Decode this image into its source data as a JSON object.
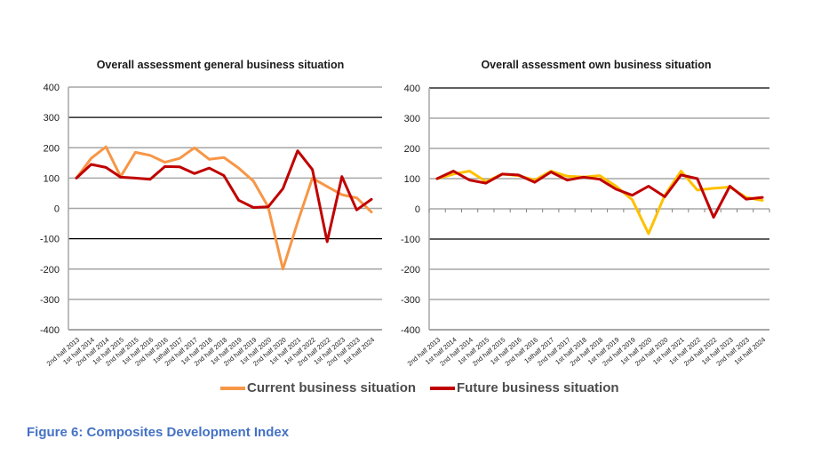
{
  "caption": "Figure 6: Composites Development Index",
  "legend": {
    "current_label": "Current business situation",
    "future_label": "Future business situation"
  },
  "chart_data": [
    {
      "type": "line",
      "title": "Overall assessment general business situation",
      "xlabel": "",
      "ylabel": "",
      "ylim": [
        -400,
        400
      ],
      "yticks": [
        400,
        300,
        200,
        100,
        0,
        -100,
        -200,
        -300,
        -400
      ],
      "grid": true,
      "legend_position": "bottom",
      "categories": [
        "2nd half 2013",
        "1st half 2014",
        "2nd half 2014",
        "1st half 2015",
        "2nd half 2015",
        "1st half 2016",
        "2nd half 2016",
        "1sthalf 2017",
        "2nd half 2017",
        "1st half 2018",
        "2nd half 2018",
        "1st half 2019",
        "2nd half 2019",
        "1st half 2020",
        "2nd half 2020",
        "1st half 2021",
        "1st half 2022",
        "2nd half 2022",
        "1st half 2023",
        "2nd half 2023",
        "1st half 2024"
      ],
      "series": [
        {
          "name": "Current business situation",
          "color": "#f79646",
          "values": [
            100,
            165,
            203,
            105,
            185,
            175,
            152,
            165,
            200,
            162,
            168,
            133,
            90,
            5,
            -200,
            -45,
            100,
            72,
            45,
            35,
            -12
          ]
        },
        {
          "name": "Future business situation",
          "color": "#c00000",
          "values": [
            100,
            145,
            135,
            103,
            100,
            96,
            138,
            137,
            115,
            133,
            108,
            27,
            3,
            5,
            65,
            190,
            128,
            -110,
            105,
            -5,
            30
          ]
        }
      ]
    },
    {
      "type": "line",
      "title": "Overall assessment own business situation",
      "xlabel": "",
      "ylabel": "",
      "ylim": [
        -400,
        400
      ],
      "yticks": [
        400,
        300,
        200,
        100,
        0,
        -100,
        -200,
        -300,
        -400
      ],
      "grid": true,
      "legend_position": "bottom",
      "categories": [
        "2nd half 2013",
        "1st half 2014",
        "2nd half 2014",
        "1st half 2015",
        "2nd half 2015",
        "1st half 2016",
        "2nd half 2016",
        "1sthalf 2017",
        "2nd half 2017",
        "1st half 2018",
        "2nd half 2018",
        "1st half 2019",
        "2nd half 2019",
        "1st half 2020",
        "2nd half 2020",
        "1st half 2021",
        "1st half 2022",
        "2nd half 2022",
        "1st half 2023",
        "2nd half 2023",
        "1st half 2024"
      ],
      "series": [
        {
          "name": "Current business situation",
          "color": "#ffc000",
          "values": [
            100,
            115,
            125,
            90,
            115,
            110,
            95,
            125,
            108,
            105,
            110,
            75,
            30,
            -82,
            45,
            125,
            62,
            68,
            72,
            38,
            28
          ]
        },
        {
          "name": "Future business situation",
          "color": "#c00000",
          "values": [
            100,
            125,
            95,
            85,
            115,
            112,
            88,
            122,
            95,
            105,
            98,
            65,
            45,
            75,
            40,
            112,
            100,
            -28,
            75,
            32,
            38
          ]
        }
      ]
    }
  ]
}
